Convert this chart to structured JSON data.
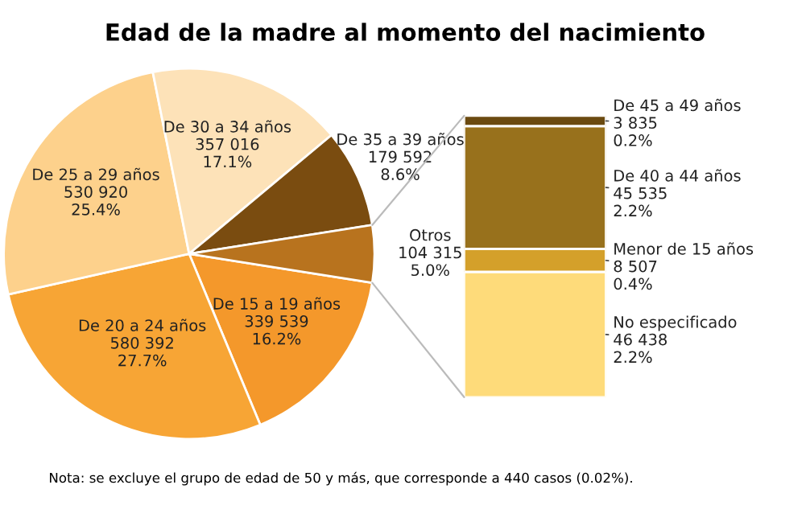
{
  "chart_data": [
    {
      "type": "pie",
      "title": "Edad de la madre al momento del nacimiento",
      "categories": [
        "De 15 a 19 años",
        "De 20 a 24 años",
        "De 25 a 29 años",
        "De 30 a 34 años",
        "De 35 a 39 años",
        "Otros"
      ],
      "values": [
        339539,
        580392,
        530920,
        357016,
        179592,
        104315
      ],
      "value_labels": [
        "339 539\n16.2%",
        "580 392\n27.7%",
        "530 920\n25.4%",
        "357 016\n17.1%",
        "179 592\n8.6%",
        "104 315\n5.0%"
      ],
      "colors": [
        "#f4982b",
        "#f7a535",
        "#fdd18c",
        "#fde2b8",
        "#7a4c10",
        "#b8731e"
      ],
      "annotations": [
        "Nota: se excluye el grupo de edad de 50 y más, que corresponde a 440 casos (0.02%)."
      ]
    },
    {
      "type": "bar",
      "stacked": true,
      "categories": [
        null
      ],
      "series": [
        {
          "name": "No especificado",
          "color": "#fedb7a",
          "values": [
            46438
          ],
          "value_labels": [
            "46 438\n2.2%"
          ]
        },
        {
          "name": "Menor de 15 años",
          "color": "#d4a02a",
          "values": [
            8507
          ],
          "value_labels": [
            "8 507\n0.4%"
          ]
        },
        {
          "name": "De 40 a 44 años",
          "color": "#98711c",
          "values": [
            45535
          ],
          "value_labels": [
            "45 535\n2.2%"
          ]
        },
        {
          "name": "De 45 a 49 años",
          "color": "#6b4a10",
          "values": [
            3835
          ],
          "value_labels": [
            "3 835\n0.2%"
          ]
        }
      ]
    }
  ]
}
